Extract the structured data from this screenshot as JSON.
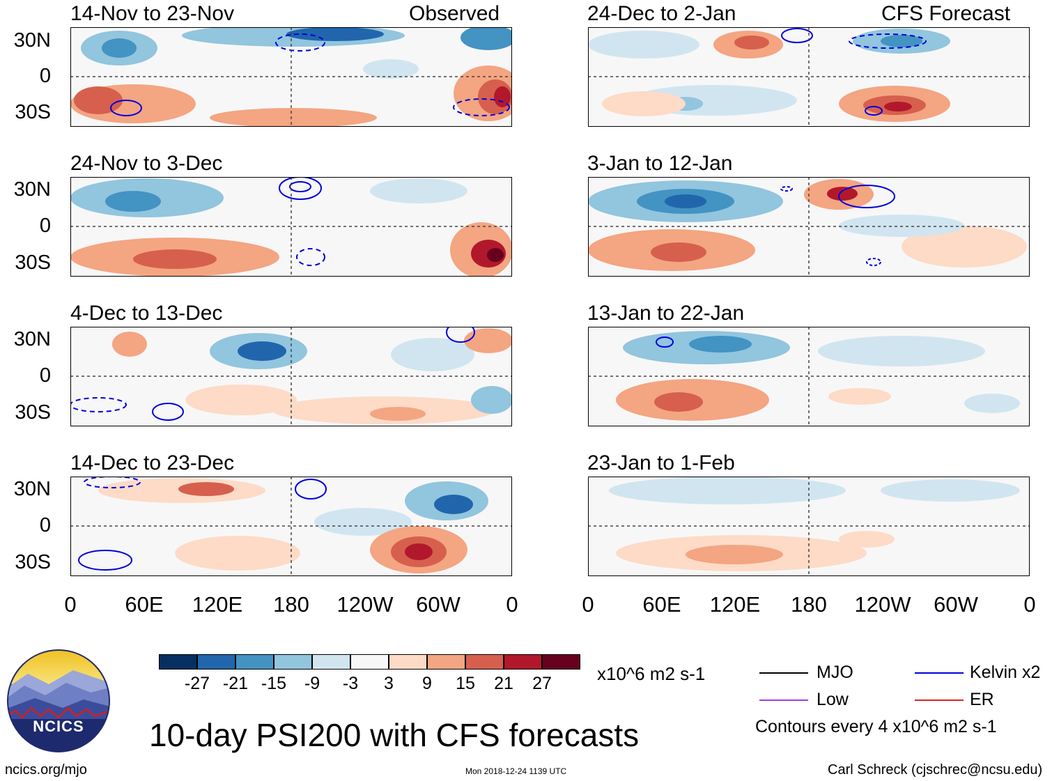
{
  "title": "10-day PSI200 with CFS forecasts",
  "observed_label": "Observed",
  "forecast_label": "CFS Forecast",
  "lat_labels": [
    "30N",
    "0",
    "30S"
  ],
  "lon_labels": [
    "0",
    "60E",
    "120E",
    "180",
    "120W",
    "60W",
    "0"
  ],
  "observed_panels": [
    {
      "title": "14-Nov to 23-Nov"
    },
    {
      "title": "24-Nov to 3-Dec"
    },
    {
      "title": "4-Dec to 13-Dec"
    },
    {
      "title": "14-Dec to 23-Dec"
    }
  ],
  "forecast_panels": [
    {
      "title": "24-Dec to 2-Jan"
    },
    {
      "title": "3-Jan to 12-Jan"
    },
    {
      "title": "13-Jan to 22-Jan"
    },
    {
      "title": "23-Jan to 1-Feb"
    }
  ],
  "colorbar": {
    "unit": "x10^6 m2 s-1",
    "ticks": [
      "-27",
      "-21",
      "-15",
      "-9",
      "-3",
      "3",
      "9",
      "15",
      "21",
      "27"
    ],
    "colors": [
      "#053061",
      "#2166ac",
      "#4393c3",
      "#92c5de",
      "#d1e5f0",
      "#f7f7f7",
      "#fddbc7",
      "#f4a582",
      "#d6604d",
      "#b2182b",
      "#67001f"
    ]
  },
  "legend": {
    "mjo": {
      "label": "MJO",
      "color": "#000000"
    },
    "kelvin": {
      "label": "Kelvin x2",
      "color": "#0000dd"
    },
    "low": {
      "label": "Low",
      "color": "#a040e0"
    },
    "er": {
      "label": "ER",
      "color": "#e02020"
    },
    "contour_note": "Contours every 4 x10^6 m2 s-1"
  },
  "logo_text": "NCICS",
  "site_url": "ncics.org/mjo",
  "timestamp": "Mon 2018-12-24 1139 UTC",
  "credit": "Carl Schreck (cjschrec@ncsu.edu)"
}
